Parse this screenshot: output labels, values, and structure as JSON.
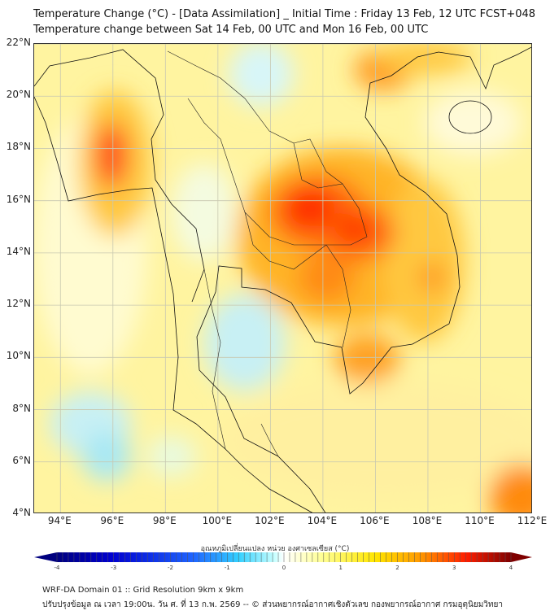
{
  "title": {
    "line1": "Temperature Change (°C) - [Data Assimilation] _ Initial Time : Friday 13 Feb, 12 UTC FCST+048",
    "line2": "Temperature change between Sat 14 Feb, 00 UTC and Mon 16 Feb, 00 UTC"
  },
  "map": {
    "lat_labels": [
      "22°N",
      "20°N",
      "18°N",
      "16°N",
      "14°N",
      "12°N",
      "10°N",
      "8°N",
      "6°N",
      "4°N"
    ],
    "lon_labels": [
      "94°E",
      "96°E",
      "98°E",
      "100°E",
      "102°E",
      "104°E",
      "106°E",
      "108°E",
      "110°E",
      "112°E"
    ],
    "extent": {
      "lon": [
        93,
        112
      ],
      "lat": [
        4,
        22
      ]
    }
  },
  "colorbar": {
    "title": "อุณหภูมิเปลี่ยนแปลง หน่วย องศาเซลเซียส (°C)",
    "ticks": [
      "-4",
      "-3",
      "-2",
      "-1",
      "0",
      "1",
      "2",
      "3",
      "4"
    ],
    "range": [
      -4,
      4
    ],
    "colors": [
      "#00007f",
      "#0000d0",
      "#1e64ff",
      "#33d0ff",
      "#c8ffff",
      "#ffffff",
      "#ffff99",
      "#ffe600",
      "#ff9900",
      "#ff1e00",
      "#7f0000"
    ]
  },
  "footer": {
    "line1": "WRF-DA Domain 01 :: Grid Resolution 9km x 9km",
    "line2": "ปรับปรุงข้อมูล ณ เวลา 19:00น. วัน ศ. ที่ 13 ก.พ. 2569 -- © ส่วนพยากรณ์อากาศเชิงตัวเลข กองพยากรณ์อากาศ กรมอุตุนิยมวิทยา"
  }
}
